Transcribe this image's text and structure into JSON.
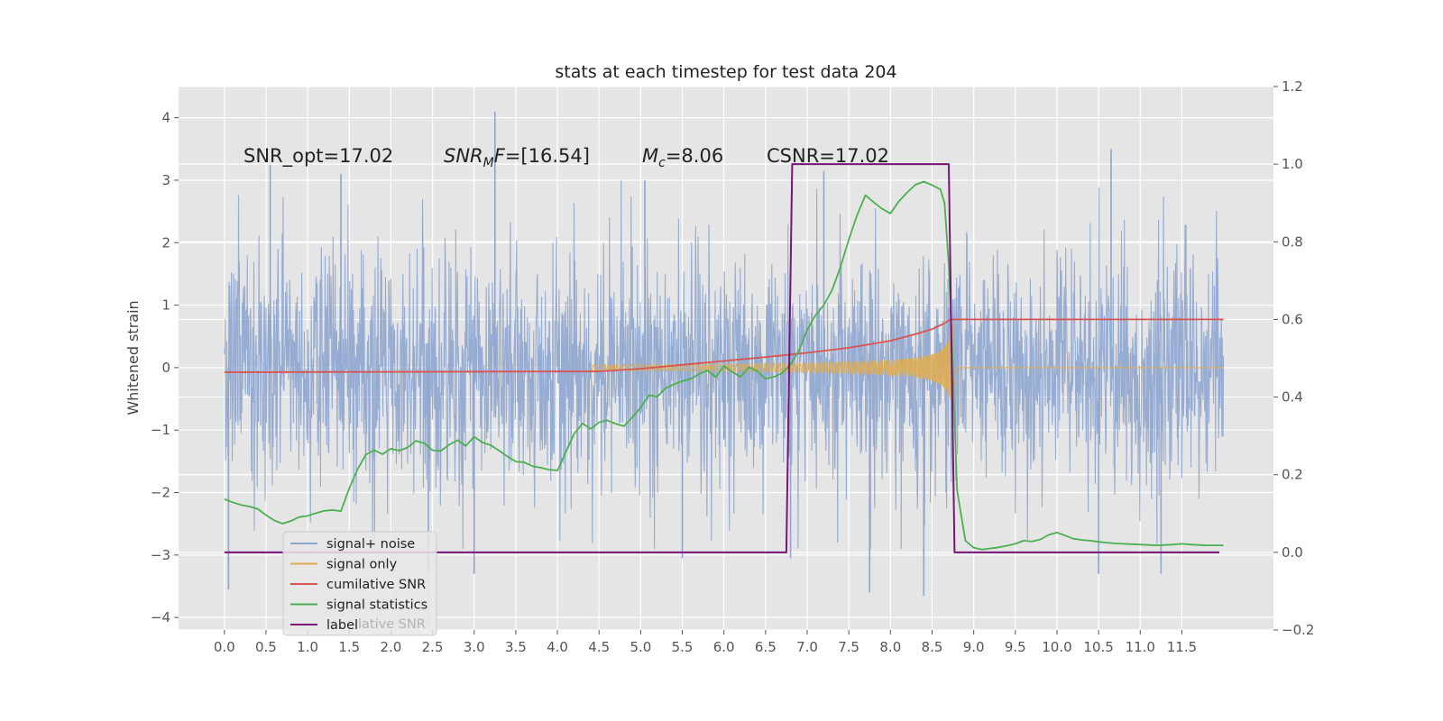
{
  "chart_data": {
    "type": "line",
    "title": "stats at each timestep for test data 204",
    "ylabel": "Whitened strain",
    "xlabel": "",
    "xlim": [
      -0.55,
      12.6
    ],
    "ylim": [
      -4.2,
      4.5
    ],
    "y2lim": [
      -0.2,
      1.2
    ],
    "grid": true,
    "legend_position": "lower-left",
    "x_ticks": [
      "0.0",
      "0.5",
      "1.0",
      "1.5",
      "2.0",
      "2.5",
      "3.0",
      "3.5",
      "4.0",
      "4.5",
      "5.0",
      "5.5",
      "6.0",
      "6.5",
      "7.0",
      "7.5",
      "8.0",
      "8.5",
      "9.0",
      "9.5",
      "10.0",
      "10.5",
      "11.0",
      "11.5"
    ],
    "y_ticks": [
      "4",
      "3",
      "2",
      "1",
      "0",
      "−1",
      "−2",
      "−3",
      "−4"
    ],
    "y2_ticks": [
      "1.2",
      "1.0",
      "0.8",
      "0.6",
      "0.4",
      "0.2",
      "0.0",
      "−0.2"
    ],
    "annotations": {
      "snr_opt": "SNR_opt=17.02",
      "snr_mf_sym": "SNR",
      "snr_mf_sub": "M",
      "snr_mf_tail": "F",
      "snr_mf_value": "=[16.54]",
      "mc_sym": "M",
      "mc_sub": "c",
      "mc_value": "=8.06",
      "csnr": "CSNR=17.02"
    },
    "colors": {
      "noise": "#8da5cf",
      "signal": "#e0ad4e",
      "cumulative": "#d9534f",
      "stats": "#4caf50",
      "label": "#7a137a",
      "axes_bg": "#e5e5e5",
      "grid": "#ffffff"
    },
    "series": [
      {
        "name": "signal+ noise",
        "axis": "left",
        "note_style": "dense noise, approx amplitude",
        "range": [
          0,
          12.0
        ],
        "std": 1.0,
        "spikes": [
          [
            0.05,
            -3.55
          ],
          [
            0.55,
            3.25
          ],
          [
            1.4,
            3.1
          ],
          [
            2.45,
            -3.3
          ],
          [
            3.0,
            -3.3
          ],
          [
            3.25,
            4.1
          ],
          [
            5.5,
            -3.05
          ],
          [
            5.05,
            3.0
          ],
          [
            6.0,
            -1.15
          ],
          [
            6.8,
            -3.05
          ],
          [
            7.2,
            3.15
          ],
          [
            7.75,
            -3.6
          ],
          [
            8.4,
            -3.65
          ],
          [
            10.5,
            -3.3
          ],
          [
            10.65,
            3.5
          ],
          [
            11.25,
            -3.3
          ]
        ]
      },
      {
        "name": "signal only",
        "axis": "left",
        "chirp_start": 4.4,
        "merger": 8.72,
        "peak_amplitude": 1.0,
        "ringdown_end": 8.8
      },
      {
        "name": "cumilative SNR",
        "axis": "right",
        "x": [
          0.0,
          4.5,
          5.0,
          5.5,
          6.0,
          6.5,
          7.0,
          7.5,
          8.0,
          8.3,
          8.5,
          8.65,
          8.72,
          12.0
        ],
        "y": [
          0.464,
          0.466,
          0.473,
          0.483,
          0.493,
          0.503,
          0.514,
          0.527,
          0.545,
          0.562,
          0.575,
          0.59,
          0.6,
          0.6
        ]
      },
      {
        "name": "signal statistics",
        "axis": "right",
        "x": [
          0.0,
          0.1,
          0.2,
          0.3,
          0.4,
          0.5,
          0.6,
          0.7,
          0.8,
          0.9,
          1.0,
          1.1,
          1.2,
          1.3,
          1.4,
          1.5,
          1.6,
          1.7,
          1.8,
          1.9,
          2.0,
          2.1,
          2.2,
          2.3,
          2.4,
          2.5,
          2.6,
          2.7,
          2.8,
          2.9,
          3.0,
          3.1,
          3.2,
          3.3,
          3.4,
          3.5,
          3.6,
          3.7,
          3.8,
          3.9,
          4.0,
          4.1,
          4.2,
          4.3,
          4.4,
          4.5,
          4.6,
          4.7,
          4.8,
          4.9,
          5.0,
          5.1,
          5.2,
          5.3,
          5.4,
          5.5,
          5.6,
          5.7,
          5.8,
          5.9,
          6.0,
          6.1,
          6.2,
          6.3,
          6.4,
          6.5,
          6.6,
          6.7,
          6.8,
          6.9,
          7.0,
          7.1,
          7.2,
          7.3,
          7.4,
          7.5,
          7.6,
          7.7,
          7.8,
          7.9,
          8.0,
          8.1,
          8.2,
          8.3,
          8.4,
          8.5,
          8.6,
          8.65,
          8.7,
          8.75,
          8.8,
          8.9,
          9.0,
          9.1,
          9.2,
          9.3,
          9.4,
          9.5,
          9.6,
          9.7,
          9.8,
          9.9,
          10.0,
          10.1,
          10.2,
          10.3,
          10.4,
          10.5,
          10.6,
          10.7,
          10.8,
          10.9,
          11.0,
          11.1,
          11.2,
          11.3,
          11.4,
          11.5,
          11.6,
          11.7,
          11.8,
          11.9,
          12.0
        ],
        "y": [
          0.137,
          0.129,
          0.122,
          0.118,
          0.112,
          0.096,
          0.082,
          0.074,
          0.081,
          0.091,
          0.094,
          0.101,
          0.107,
          0.109,
          0.106,
          0.165,
          0.214,
          0.252,
          0.263,
          0.253,
          0.267,
          0.262,
          0.27,
          0.287,
          0.281,
          0.263,
          0.261,
          0.277,
          0.289,
          0.274,
          0.298,
          0.283,
          0.276,
          0.262,
          0.247,
          0.234,
          0.232,
          0.222,
          0.218,
          0.213,
          0.211,
          0.258,
          0.305,
          0.332,
          0.318,
          0.335,
          0.34,
          0.331,
          0.325,
          0.348,
          0.373,
          0.405,
          0.401,
          0.423,
          0.433,
          0.441,
          0.447,
          0.459,
          0.469,
          0.451,
          0.48,
          0.465,
          0.452,
          0.477,
          0.467,
          0.447,
          0.452,
          0.462,
          0.484,
          0.52,
          0.573,
          0.611,
          0.637,
          0.676,
          0.735,
          0.806,
          0.869,
          0.92,
          0.902,
          0.885,
          0.873,
          0.904,
          0.927,
          0.947,
          0.955,
          0.946,
          0.935,
          0.9,
          0.74,
          0.47,
          0.16,
          0.03,
          0.012,
          0.007,
          0.01,
          0.013,
          0.017,
          0.022,
          0.03,
          0.028,
          0.033,
          0.045,
          0.051,
          0.043,
          0.035,
          0.032,
          0.03,
          0.027,
          0.025,
          0.023,
          0.022,
          0.021,
          0.02,
          0.019,
          0.018,
          0.019,
          0.02,
          0.022,
          0.02,
          0.019,
          0.018,
          0.018,
          0.018
        ]
      },
      {
        "name": "label",
        "axis": "right",
        "x": [
          0.0,
          6.75,
          6.82,
          8.7,
          8.77,
          11.95
        ],
        "y": [
          0.0,
          0.0,
          1.0,
          1.0,
          0.0,
          0.0
        ]
      }
    ],
    "legend": [
      {
        "label": "signal+ noise",
        "color_key": "noise"
      },
      {
        "label": "signal only",
        "color_key": "signal"
      },
      {
        "label": "cumilative SNR",
        "color_key": "cumulative"
      },
      {
        "label": "signal statistics",
        "color_key": "stats"
      },
      {
        "label": "label",
        "color_key": "label"
      }
    ],
    "legend_ghost_text": "lative SNR"
  }
}
